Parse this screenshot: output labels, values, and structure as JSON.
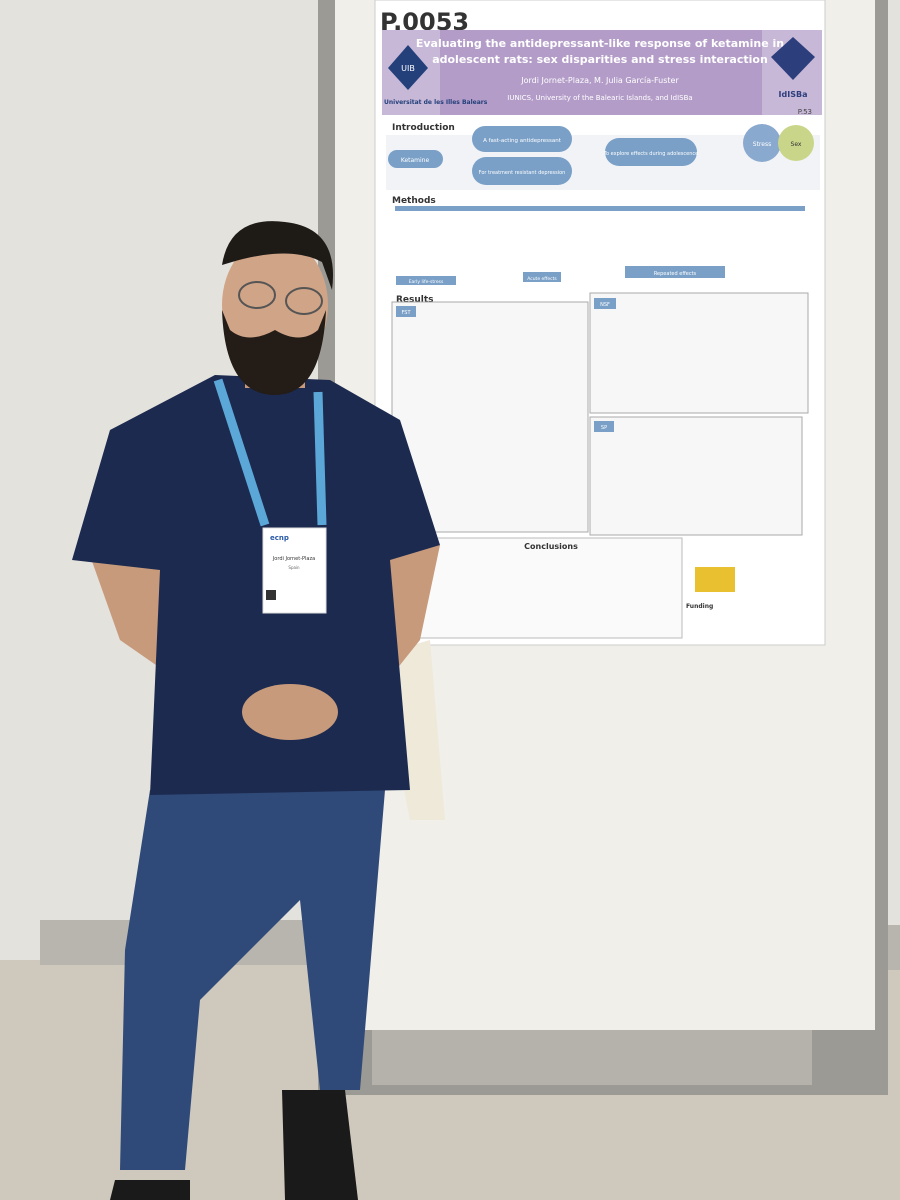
{
  "poster": {
    "number": "P.0053",
    "title_line_1": "Evaluating the antidepressant-like response of ketamine in",
    "title_line_2": "adolescent rats: sex disparities and stress interaction",
    "authors": "Jordi Jornet-Plaza, M. Julia García-Fuster",
    "affiliation": "IUNICS, University of the Balearic Islands, and IdISBa",
    "university_logo": "UIB",
    "university_name": "Universitat de les Illes Balears",
    "institute": "IdISBa",
    "page_code": "P.53",
    "sections": {
      "introduction": "Introduction",
      "methods": "Methods",
      "results": "Results",
      "conclusions": "Conclusions",
      "funding": "Funding"
    },
    "intro": {
      "ketamine": "Ketamine",
      "fast": "A fast-acting antidepressant",
      "resistant": "For treatment resistant depression",
      "explore": "To explore effects during adolescence",
      "stress": "Stress",
      "sex": "Sex"
    },
    "methods": {
      "acute": "Acute effects",
      "repeated": "Repeated effects",
      "early": "Early life-stress"
    },
    "results": {
      "fst": "FST",
      "nsf": "NSF",
      "sp": "SP"
    }
  },
  "badge": {
    "brand": "ecnp",
    "name": "Jordi Jornet-Plaza",
    "country": "Spain"
  }
}
